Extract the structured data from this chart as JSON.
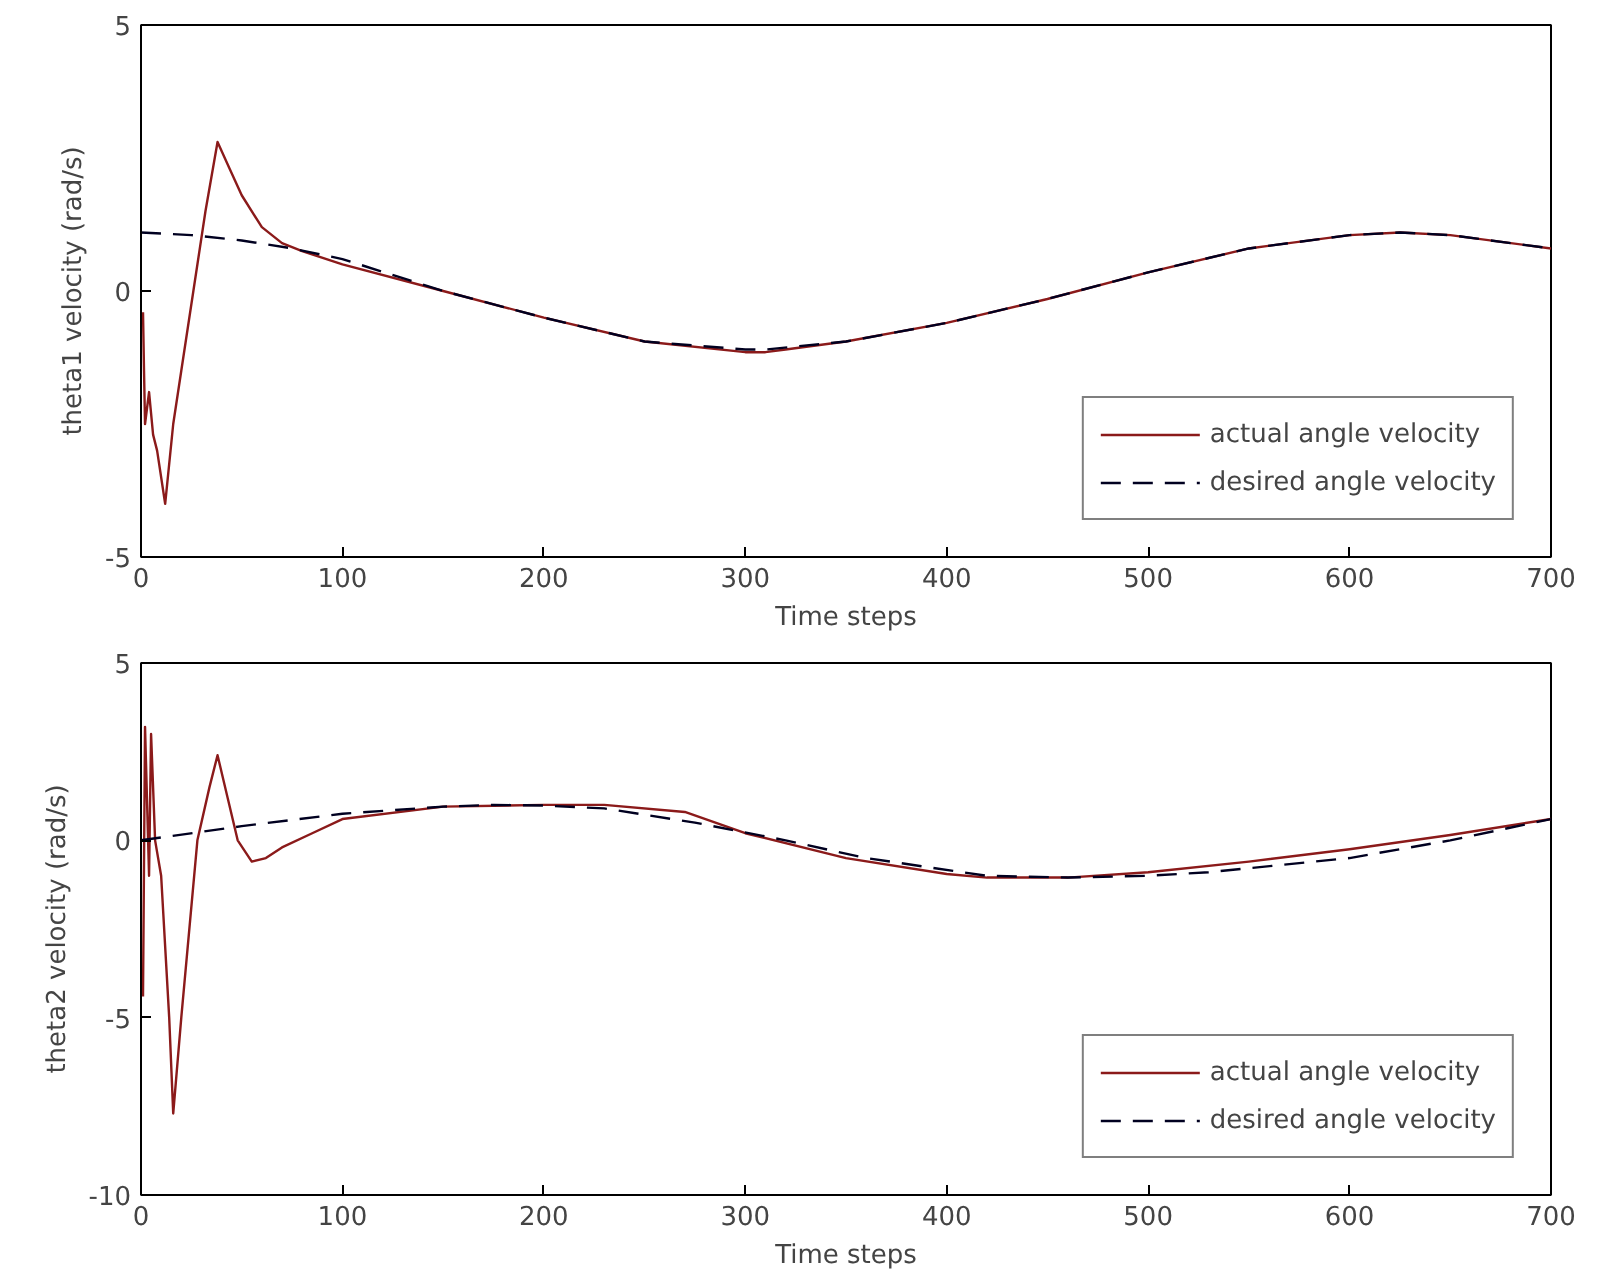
{
  "chart_data": [
    {
      "type": "line",
      "xlabel": "Time steps",
      "ylabel": "theta1 velocity (rad/s)",
      "xlim": [
        0,
        700
      ],
      "ylim": [
        -5,
        5
      ],
      "xticks": [
        0,
        100,
        200,
        300,
        400,
        500,
        600,
        700
      ],
      "yticks": [
        -5,
        0,
        5
      ],
      "grid": false,
      "legend": "bottom right",
      "series": [
        {
          "name": "actual angle velocity",
          "color": "#8b1a1a",
          "line_style": "solid",
          "x": [
            1,
            1.5,
            2,
            4,
            6,
            8,
            12,
            16,
            20,
            26,
            32,
            38,
            44,
            50,
            60,
            70,
            80,
            100,
            150,
            200,
            250,
            300,
            310,
            320,
            350,
            400,
            450,
            500,
            550,
            600,
            625,
            650,
            700
          ],
          "values": [
            -0.4,
            -1.5,
            -2.5,
            -1.9,
            -2.7,
            -3.0,
            -4.0,
            -2.5,
            -1.5,
            0,
            1.5,
            2.8,
            2.3,
            1.8,
            1.2,
            0.9,
            0.75,
            0.5,
            0.0,
            -0.5,
            -0.95,
            -1.15,
            -1.15,
            -1.1,
            -0.95,
            -0.6,
            -0.15,
            0.35,
            0.8,
            1.05,
            1.1,
            1.05,
            0.8
          ]
        },
        {
          "name": "desired angle velocity",
          "color": "#000020",
          "line_style": "dashed",
          "x": [
            0,
            25,
            50,
            75,
            100,
            150,
            200,
            250,
            300,
            310,
            350,
            400,
            450,
            500,
            550,
            600,
            625,
            650,
            700
          ],
          "values": [
            1.1,
            1.05,
            0.95,
            0.8,
            0.6,
            0.0,
            -0.5,
            -0.95,
            -1.1,
            -1.1,
            -0.95,
            -0.6,
            -0.15,
            0.35,
            0.8,
            1.05,
            1.1,
            1.05,
            0.8
          ]
        }
      ]
    },
    {
      "type": "line",
      "xlabel": "Time steps",
      "ylabel": "theta2 velocity (rad/s)",
      "xlim": [
        0,
        700
      ],
      "ylim": [
        -10,
        5
      ],
      "xticks": [
        0,
        100,
        200,
        300,
        400,
        500,
        600,
        700
      ],
      "yticks": [
        -10,
        -5,
        0,
        5
      ],
      "grid": false,
      "legend": "bottom right",
      "series": [
        {
          "name": "actual angle velocity",
          "color": "#8b1a1a",
          "line_style": "solid",
          "x": [
            1,
            2,
            4,
            5,
            7,
            10,
            14,
            16,
            20,
            28,
            34,
            38,
            43,
            48,
            55,
            62,
            70,
            85,
            100,
            150,
            200,
            230,
            270,
            300,
            350,
            400,
            420,
            460,
            500,
            550,
            600,
            650,
            700
          ],
          "values": [
            -4.4,
            3.2,
            -1.0,
            3.0,
            0.0,
            -1.0,
            -5.0,
            -7.7,
            -5.0,
            0.0,
            1.5,
            2.4,
            1.2,
            0.0,
            -0.6,
            -0.5,
            -0.2,
            0.2,
            0.6,
            0.95,
            1.0,
            1.0,
            0.8,
            0.2,
            -0.5,
            -0.95,
            -1.05,
            -1.05,
            -0.9,
            -0.6,
            -0.25,
            0.15,
            0.6
          ]
        },
        {
          "name": "desired angle velocity",
          "color": "#000020",
          "line_style": "dashed",
          "x": [
            0,
            50,
            100,
            150,
            175,
            200,
            230,
            275,
            320,
            360,
            420,
            460,
            500,
            530,
            600,
            650,
            700
          ],
          "values": [
            0.0,
            0.4,
            0.75,
            0.95,
            1.0,
            0.98,
            0.9,
            0.5,
            0.0,
            -0.5,
            -1.0,
            -1.05,
            -1.0,
            -0.9,
            -0.5,
            0.0,
            0.6
          ]
        }
      ]
    }
  ]
}
